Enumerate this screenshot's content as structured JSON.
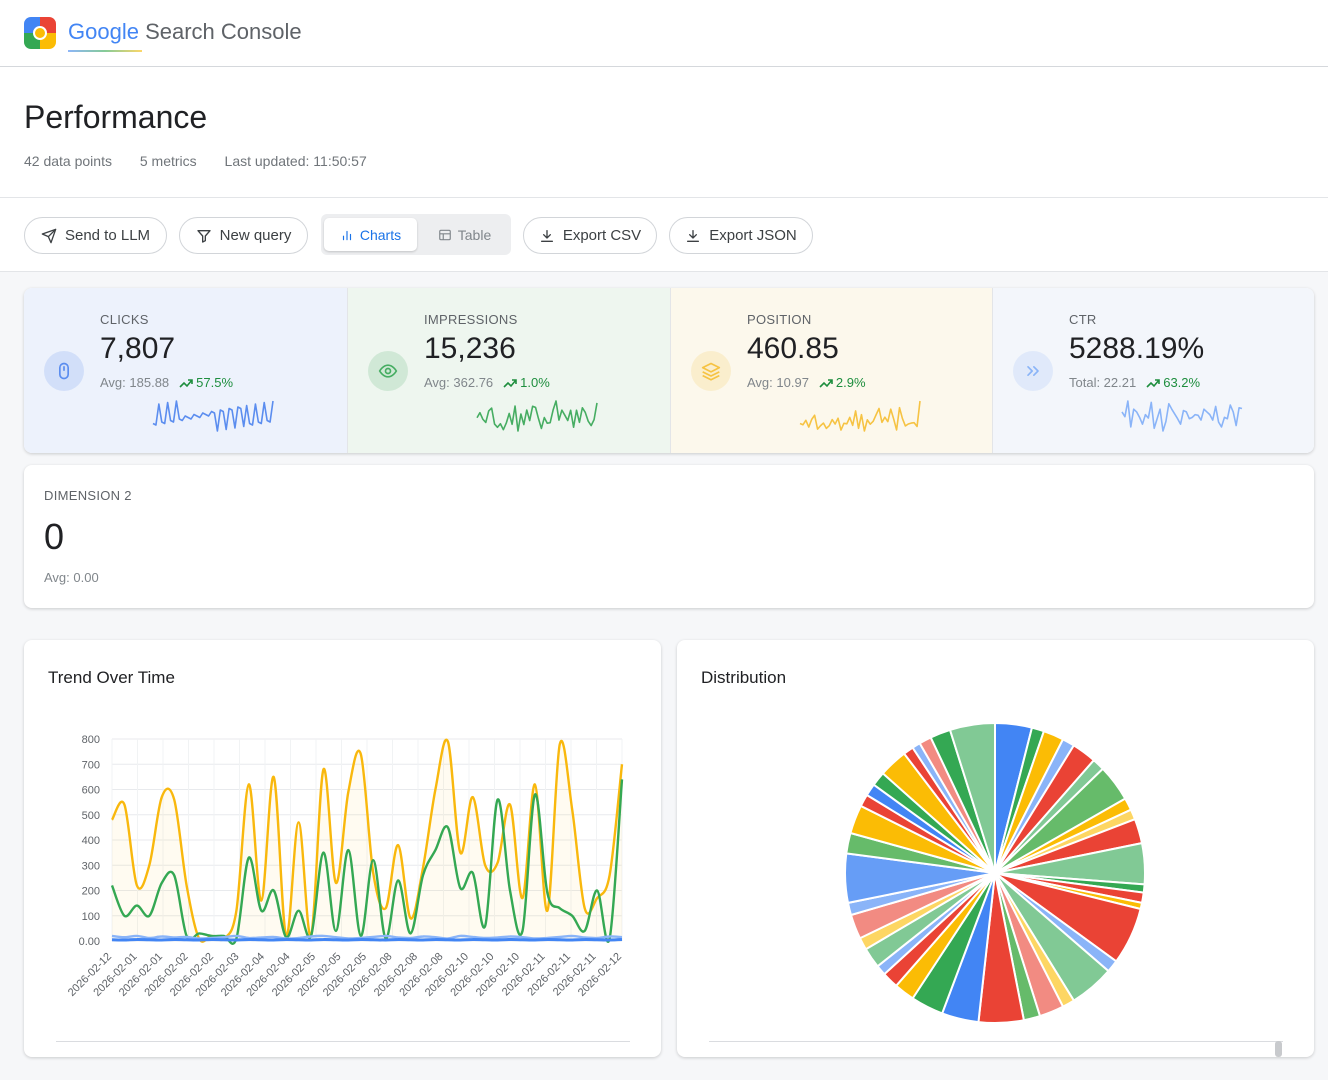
{
  "app": {
    "title_google": "Google",
    "title_rest": "Search Console"
  },
  "header": {
    "title": "Performance",
    "meta": [
      "42 data points",
      "5 metrics",
      "Last updated: 11:50:57"
    ]
  },
  "toolbar": {
    "send_llm": "Send to LLM",
    "new_query": "New query",
    "view_toggle": {
      "charts": "Charts",
      "table": "Table",
      "selected": "Charts"
    },
    "export_csv": "Export CSV",
    "export_json": "Export JSON"
  },
  "metrics": [
    {
      "label": "CLICKS",
      "value": "7,807",
      "sub": "Avg: 185.88",
      "trend": "57.5%",
      "color": "#5b8def",
      "bg": "#edf2fc",
      "icon": "mouse-icon"
    },
    {
      "label": "IMPRESSIONS",
      "value": "15,236",
      "sub": "Avg: 362.76",
      "trend": "1.0%",
      "color": "#46ad62",
      "bg": "#eef6ef",
      "icon": "eye-icon"
    },
    {
      "label": "POSITION",
      "value": "460.85",
      "sub": "Avg: 10.97",
      "trend": "2.9%",
      "color": "#f6c343",
      "bg": "#fcf8ec",
      "icon": "layers-icon"
    },
    {
      "label": "CTR",
      "value": "5288.19%",
      "sub": "Total: 22.21",
      "trend": "63.2%",
      "color": "#8ab4f8",
      "bg": "#f3f6fb",
      "icon": "chevrons-right-icon"
    }
  ],
  "dimension": {
    "label": "DIMENSION 2",
    "value": "0",
    "sub": "Avg: 0.00"
  },
  "trend_panel": {
    "title": "Trend Over Time"
  },
  "distribution_panel": {
    "title": "Distribution"
  },
  "chart_data": [
    {
      "type": "line",
      "title": "Trend Over Time",
      "y_ticks": [
        "800",
        "700",
        "600",
        "500",
        "400",
        "300",
        "200",
        "100",
        "0.00"
      ],
      "ylim": [
        0,
        800
      ],
      "x": [
        "2026-02-12",
        "2026-02-12",
        "2026-02-01",
        "2026-02-01",
        "2026-02-01",
        "2026-02-01",
        "2026-02-02",
        "2026-02-02",
        "2026-02-02",
        "2026-02-02",
        "2026-02-03",
        "2026-02-03",
        "2026-02-04",
        "2026-02-04",
        "2026-02-04",
        "2026-02-04",
        "2026-02-05",
        "2026-02-05",
        "2026-02-05",
        "2026-02-05",
        "2026-02-05",
        "2026-02-05",
        "2026-02-08",
        "2026-02-08",
        "2026-02-08",
        "2026-02-08",
        "2026-02-08",
        "2026-02-08",
        "2026-02-10",
        "2026-02-10",
        "2026-02-10",
        "2026-02-10",
        "2026-02-10",
        "2026-02-10",
        "2026-02-11",
        "2026-02-11",
        "2026-02-11",
        "2026-02-11",
        "2026-02-11",
        "2026-02-11",
        "2026-02-12",
        "2026-02-12"
      ],
      "x_tick_labels": [
        "2026-02-12",
        "2026-02-01",
        "2026-02-01",
        "2026-02-02",
        "2026-02-02",
        "2026-02-03",
        "2026-02-04",
        "2026-02-04",
        "2026-02-05",
        "2026-02-05",
        "2026-02-05",
        "2026-02-08",
        "2026-02-08",
        "2026-02-08",
        "2026-02-10",
        "2026-02-10",
        "2026-02-10",
        "2026-02-11",
        "2026-02-11",
        "2026-02-11",
        "2026-02-12"
      ],
      "grid": true,
      "series": [
        {
          "color": "#f9b80d",
          "values": [
            480,
            540,
            220,
            300,
            570,
            560,
            220,
            10,
            20,
            10,
            120,
            620,
            160,
            650,
            20,
            470,
            20,
            680,
            230,
            590,
            740,
            270,
            130,
            380,
            90,
            290,
            600,
            790,
            350,
            570,
            300,
            310,
            540,
            170,
            620,
            120,
            780,
            520,
            130,
            170,
            260,
            700
          ]
        },
        {
          "color": "#34a853",
          "values": [
            220,
            100,
            140,
            100,
            230,
            260,
            20,
            30,
            20,
            20,
            10,
            330,
            120,
            200,
            15,
            120,
            20,
            350,
            40,
            360,
            20,
            320,
            10,
            240,
            30,
            260,
            360,
            450,
            210,
            270,
            60,
            560,
            200,
            40,
            580,
            190,
            130,
            100,
            40,
            200,
            10,
            640
          ]
        },
        {
          "color": "#8ab4f8",
          "values": [
            20,
            15,
            20,
            12,
            18,
            14,
            16,
            10,
            12,
            15,
            20,
            12,
            14,
            16,
            10,
            12,
            18,
            20,
            15,
            10,
            12,
            16,
            20,
            14,
            12,
            18,
            15,
            10,
            20,
            16,
            12,
            14,
            18,
            15,
            10,
            12,
            16,
            20,
            14,
            12,
            18,
            15
          ]
        },
        {
          "color": "#4285f4",
          "values": [
            5,
            4,
            6,
            5,
            4,
            6,
            5,
            4,
            6,
            5,
            4,
            6,
            5,
            4,
            6,
            5,
            4,
            6,
            5,
            4,
            6,
            5,
            4,
            6,
            5,
            4,
            6,
            5,
            4,
            6,
            5,
            4,
            6,
            5,
            4,
            6,
            5,
            4,
            6,
            5,
            4,
            6
          ]
        }
      ]
    },
    {
      "type": "pie",
      "title": "Distribution",
      "values": [
        18,
        6,
        10,
        6,
        12,
        6,
        18,
        6,
        5,
        12,
        20,
        4,
        5,
        3,
        28,
        6,
        22,
        6,
        12,
        8,
        22,
        18,
        16,
        10,
        8,
        5,
        10,
        6,
        12,
        6,
        24,
        10,
        14,
        6,
        6,
        7,
        14,
        5,
        4,
        6,
        10,
        22
      ],
      "colors": [
        "#4285f4",
        "#34a853",
        "#fbbc05",
        "#8ab4f8",
        "#ea4335",
        "#81c995",
        "#66bb6a",
        "#fbbc05",
        "#fdd663",
        "#ea4335",
        "#81c995",
        "#34a853",
        "#ea4335",
        "#fbbc05",
        "#ea4335",
        "#8ab4f8",
        "#81c995",
        "#fdd663",
        "#f28b82",
        "#66bb6a",
        "#ea4335",
        "#4285f4",
        "#34a853",
        "#fbbc05",
        "#ea4335",
        "#8ab4f8",
        "#81c995",
        "#fdd663",
        "#f28b82",
        "#8ab4f8",
        "#669df6",
        "#66bb6a",
        "#fbbc05",
        "#ea4335",
        "#4285f4",
        "#34a853",
        "#fbbc05",
        "#ea4335",
        "#8ab4f8",
        "#f28b82",
        "#34a853",
        "#81c995"
      ]
    }
  ]
}
